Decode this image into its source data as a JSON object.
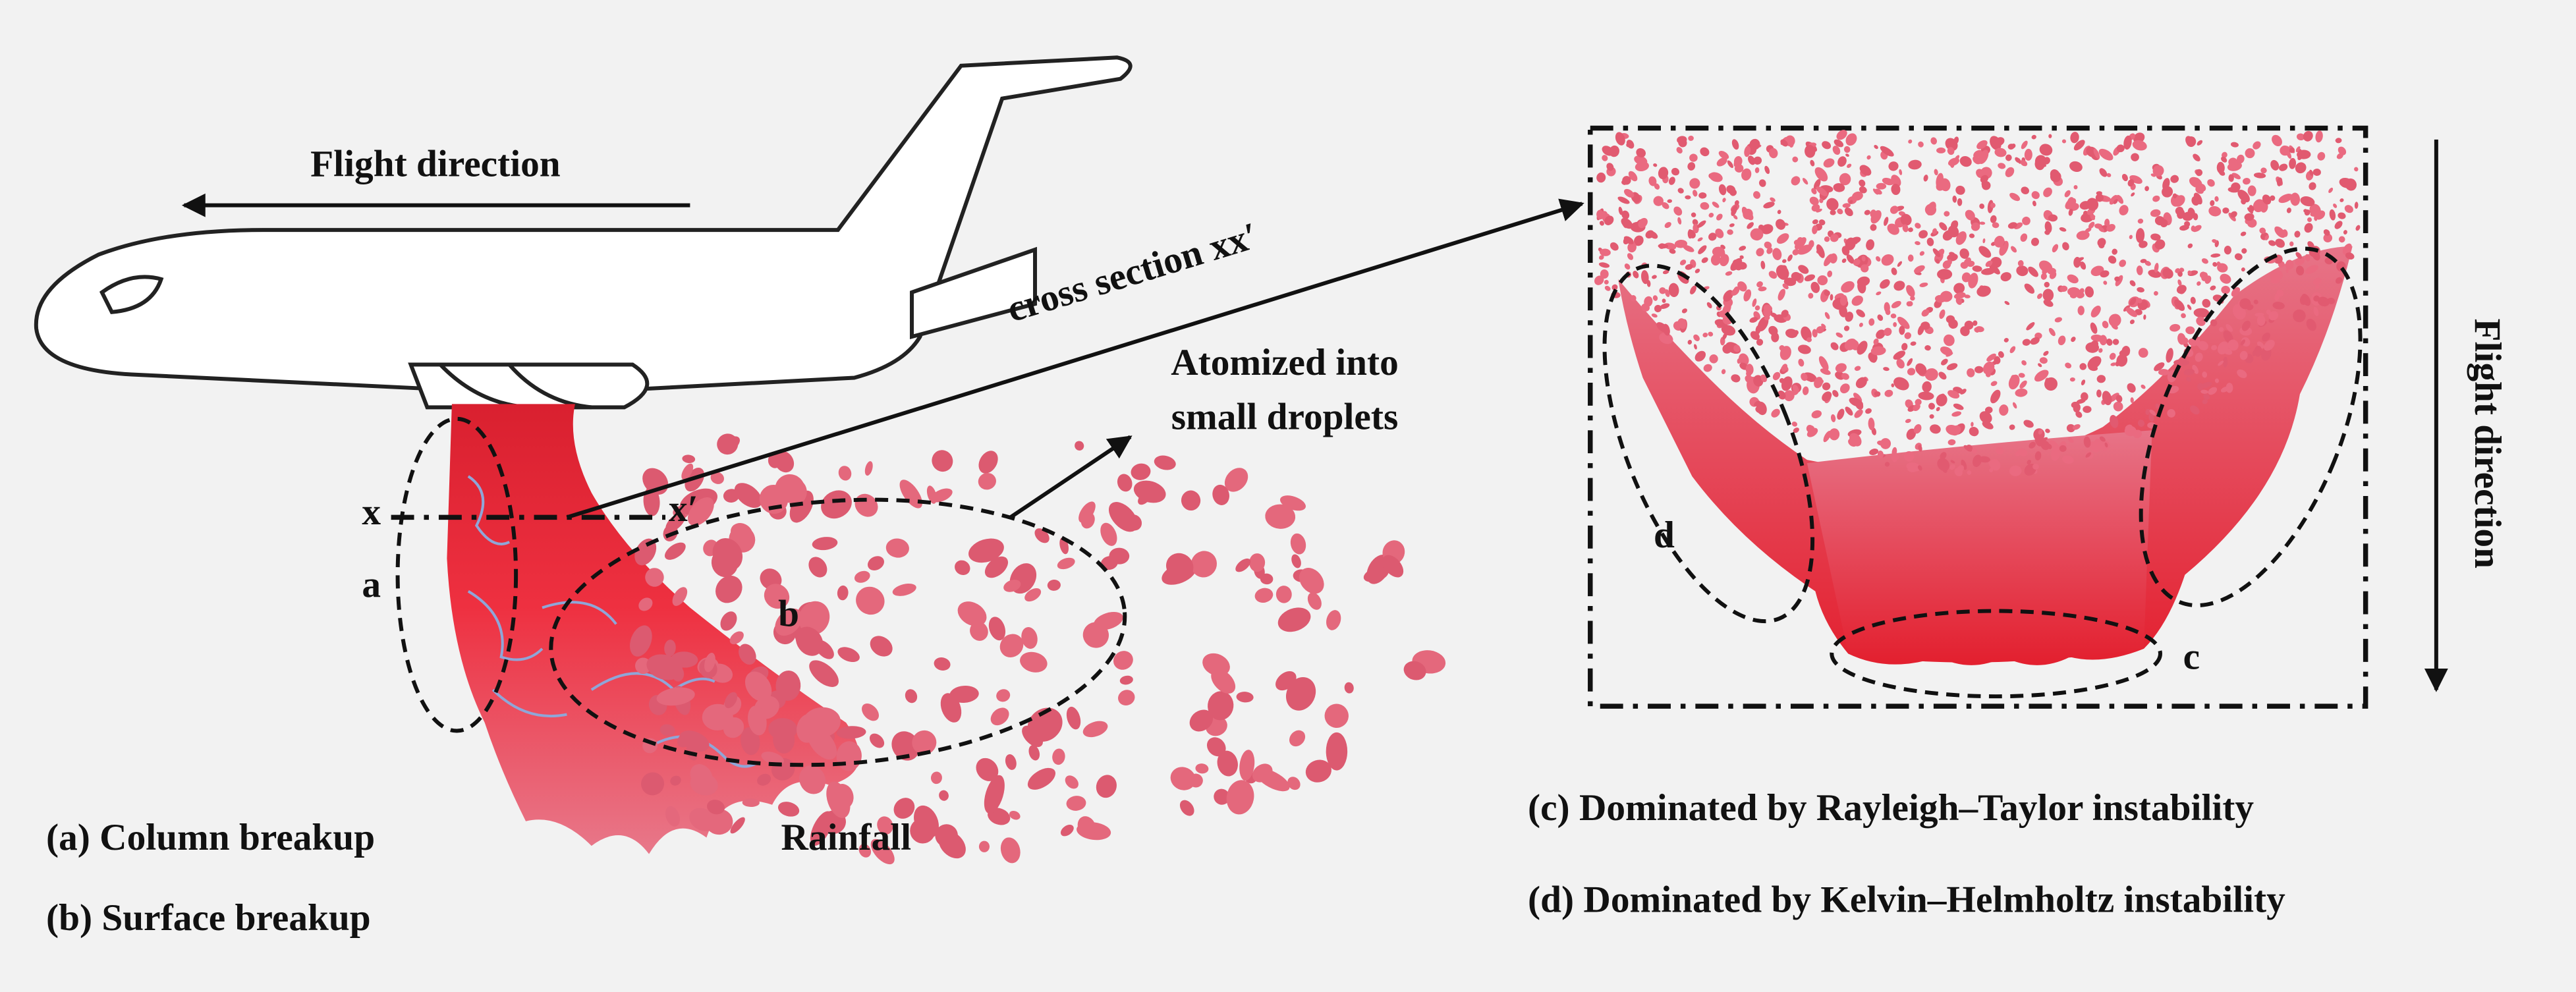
{
  "labels": {
    "flight_direction_left": "Flight direction",
    "cross_section": "cross section xx′",
    "atomized_line1": "Atomized into",
    "atomized_line2": "small droplets",
    "x": "x",
    "x_prime": "x′",
    "a": "a",
    "b": "b",
    "c": "c",
    "d": "d",
    "rainfall": "Rainfall",
    "flight_direction_right": "Flight direction"
  },
  "legend": [
    "(a) Column breakup",
    "(b) Surface breakup",
    "(c) Dominated by Rayleigh–Taylor instability",
    "(d) Dominated by Kelvin–Helmholtz instability"
  ]
}
